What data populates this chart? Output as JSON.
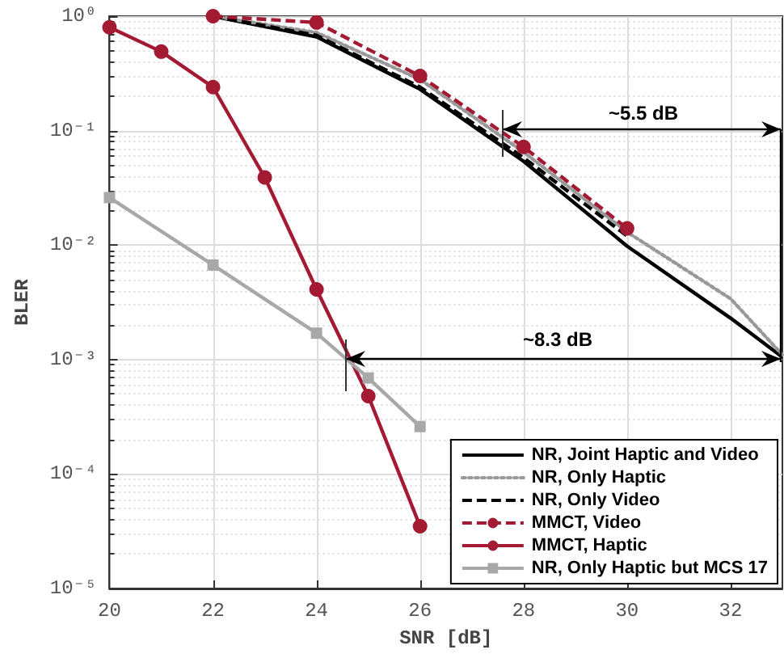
{
  "chart_data": {
    "type": "line",
    "xlabel": "SNR [dB]",
    "ylabel": "BLER",
    "log": "y",
    "grid": true,
    "legend": "bottom right",
    "xlim": [
      20,
      33
    ],
    "xticks": [
      20,
      22,
      24,
      26,
      28,
      30,
      32
    ],
    "ylim": [
      1e-05,
      1
    ],
    "yticks": [
      {
        "value": 1e-05,
        "label": "10⁻⁵"
      },
      {
        "value": 0.0001,
        "label": "10⁻⁴"
      },
      {
        "value": 0.001,
        "label": "10⁻³"
      },
      {
        "value": 0.01,
        "label": "10⁻²"
      },
      {
        "value": 0.1,
        "label": "10⁻¹"
      },
      {
        "value": 1,
        "label": "10⁰"
      }
    ],
    "series": [
      {
        "name": "NR, Joint Haptic and Video",
        "color": "#000000",
        "marker": "none",
        "line_style": "solid",
        "x": [
          22,
          24,
          26,
          28,
          30,
          32,
          33
        ],
        "values": [
          1,
          0.66,
          0.23,
          0.054,
          0.0098,
          0.0023,
          0.00105
        ]
      },
      {
        "name": "NR, Only Haptic",
        "color": "#999999",
        "marker": "none",
        "line_style": "dotted",
        "x": [
          22,
          24,
          26,
          28,
          30,
          32,
          33
        ],
        "values": [
          1,
          0.72,
          0.28,
          0.065,
          0.013,
          0.0034,
          0.0011
        ]
      },
      {
        "name": "NR, Only Video",
        "color": "#000000",
        "marker": "none",
        "line_style": "dashed",
        "x": [
          22,
          24,
          26,
          28,
          30
        ],
        "values": [
          1,
          0.68,
          0.24,
          0.058,
          0.012
        ]
      },
      {
        "name": "MMCT, Video",
        "color": "#a31a32",
        "marker": "circle",
        "line_style": "dashed",
        "x": [
          22,
          24,
          26,
          28,
          30
        ],
        "values": [
          1,
          0.88,
          0.3,
          0.072,
          0.014
        ]
      },
      {
        "name": "MMCT, Haptic",
        "color": "#a31a32",
        "marker": "circle",
        "line_style": "solid",
        "x": [
          20,
          21,
          22,
          23,
          24,
          25,
          26
        ],
        "values": [
          0.8,
          0.49,
          0.24,
          0.039,
          0.0041,
          0.00048,
          3.5e-05
        ]
      },
      {
        "name": "NR, Only Haptic but MCS 17",
        "color": "#a8a8a8",
        "marker": "square",
        "line_style": "solid",
        "x": [
          20,
          22,
          24,
          25,
          26
        ],
        "values": [
          0.026,
          0.0067,
          0.0017,
          0.00069,
          0.00026
        ]
      }
    ],
    "annotations": [
      "~5.5 dB",
      "~8.3 dB"
    ]
  }
}
